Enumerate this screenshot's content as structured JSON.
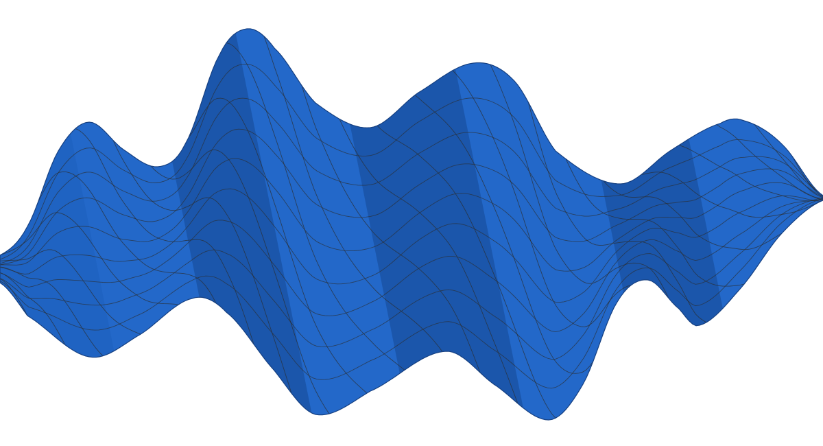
{
  "surface": {
    "type": "wavy-ribbon-3d",
    "colors": {
      "background": "#ffffff",
      "surface_fill": "#1f63c2",
      "surface_highlight": "#2a74d6",
      "surface_shadow": "#153f80",
      "mesh_lines": "#2b2f33"
    },
    "mesh": {
      "wireframe": true,
      "line_family": "diagonal-sinusoidal"
    },
    "labels": {
      "title": "",
      "xlabel": "",
      "ylabel": "",
      "zlabel": ""
    }
  }
}
